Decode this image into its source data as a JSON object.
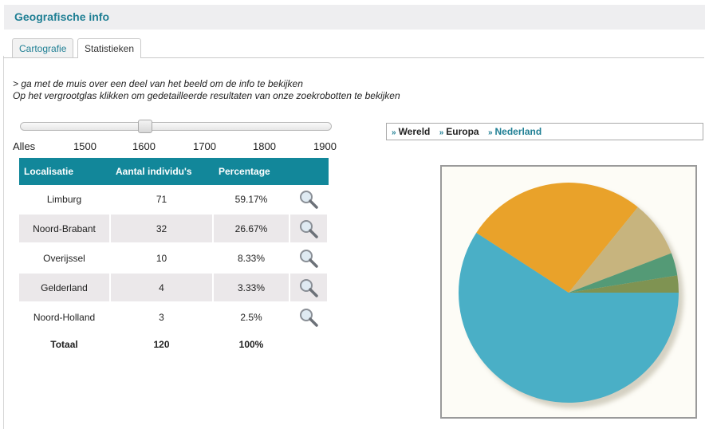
{
  "header": {
    "title": "Geografische info"
  },
  "tabs": [
    {
      "label": "Cartografie",
      "active": false
    },
    {
      "label": "Statistieken",
      "active": true
    }
  ],
  "instructions": {
    "line1": "> ga met de muis over een deel van het beeld om de info te bekijken",
    "line2": "Op het vergrootglas klikken om gedetailleerde resultaten van onze zoekrobotten te bekijken"
  },
  "slider": {
    "ticks": [
      "Alles",
      "1500",
      "1600",
      "1700",
      "1800",
      "1900"
    ],
    "selected": "1600"
  },
  "table": {
    "headers": [
      "Localisatie",
      "Aantal individu's",
      "Percentage"
    ],
    "rows": [
      {
        "place": "Limburg",
        "count": "71",
        "pct": "59.17%"
      },
      {
        "place": "Noord-Brabant",
        "count": "32",
        "pct": "26.67%"
      },
      {
        "place": "Overijssel",
        "count": "10",
        "pct": "8.33%"
      },
      {
        "place": "Gelderland",
        "count": "4",
        "pct": "3.33%"
      },
      {
        "place": "Noord-Holland",
        "count": "3",
        "pct": "2.5%"
      }
    ],
    "total": {
      "label": "Totaal",
      "count": "120",
      "pct": "100%"
    }
  },
  "breadcrumb": [
    {
      "label": "Wereld",
      "current": false
    },
    {
      "label": "Europa",
      "current": false
    },
    {
      "label": "Nederland",
      "current": true
    }
  ],
  "colors": {
    "accent": "#1f7f94",
    "table_header": "#12879a",
    "pie": [
      "#4aafc6",
      "#e9a22a",
      "#c7b47e",
      "#549a76",
      "#7f9352"
    ]
  },
  "chart_data": {
    "type": "pie",
    "categories": [
      "Limburg",
      "Noord-Brabant",
      "Overijssel",
      "Gelderland",
      "Noord-Holland"
    ],
    "values": [
      71,
      32,
      10,
      4,
      3
    ]
  }
}
